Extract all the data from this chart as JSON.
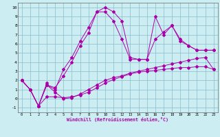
{
  "xlabel": "Windchill (Refroidissement éolien,°C)",
  "xlim": [
    -0.5,
    23.5
  ],
  "ylim": [
    -1.5,
    10.5
  ],
  "xticks": [
    0,
    1,
    2,
    3,
    4,
    5,
    6,
    7,
    8,
    9,
    10,
    11,
    12,
    13,
    14,
    15,
    16,
    17,
    18,
    19,
    20,
    21,
    22,
    23
  ],
  "yticks": [
    -1,
    0,
    1,
    2,
    3,
    4,
    5,
    6,
    7,
    8,
    9,
    10
  ],
  "background_color": "#cceef2",
  "grid_color": "#88bbcc",
  "line_color": "#aa00aa",
  "line1_x": [
    0,
    1,
    2,
    3,
    3,
    4,
    5,
    6,
    7,
    8,
    9,
    10,
    11,
    12,
    13,
    14,
    15,
    16,
    17,
    18,
    19,
    20,
    21,
    22,
    23
  ],
  "line1_y": [
    2.0,
    1.0,
    -0.8,
    1.7,
    1.5,
    1.0,
    3.2,
    4.5,
    6.3,
    7.8,
    9.5,
    9.5,
    8.5,
    6.5,
    4.3,
    4.3,
    4.3,
    9.0,
    7.0,
    8.0,
    6.3,
    5.8,
    5.3,
    5.3,
    5.3
  ],
  "line2_x": [
    0,
    1,
    2,
    3,
    4,
    5,
    6,
    7,
    8,
    9,
    10,
    11,
    12,
    13,
    14,
    15,
    16,
    17,
    18,
    19,
    20,
    21,
    22,
    23
  ],
  "line2_y": [
    2.0,
    1.0,
    -0.8,
    1.5,
    1.2,
    2.5,
    4.0,
    5.8,
    7.2,
    9.5,
    10.0,
    9.5,
    8.5,
    4.5,
    4.3,
    4.3,
    6.5,
    7.3,
    8.0,
    6.5,
    5.8,
    5.3,
    5.3,
    5.3
  ],
  "line3_x": [
    0,
    1,
    2,
    3,
    4,
    5,
    6,
    7,
    8,
    9,
    10,
    11,
    12,
    13,
    14,
    15,
    16,
    17,
    18,
    19,
    20,
    21,
    22,
    23
  ],
  "line3_y": [
    2.0,
    1.0,
    -0.8,
    0.2,
    0.2,
    0.1,
    0.2,
    0.4,
    0.7,
    1.2,
    1.7,
    2.1,
    2.4,
    2.7,
    2.9,
    3.0,
    3.1,
    3.2,
    3.3,
    3.4,
    3.4,
    3.5,
    3.5,
    3.2
  ],
  "line4_x": [
    0,
    1,
    2,
    3,
    4,
    5,
    6,
    7,
    8,
    9,
    10,
    11,
    12,
    13,
    14,
    15,
    16,
    17,
    18,
    19,
    20,
    21,
    22,
    23
  ],
  "line4_y": [
    2.0,
    1.0,
    -0.8,
    1.5,
    0.7,
    0.0,
    0.1,
    0.5,
    1.0,
    1.5,
    2.0,
    2.3,
    2.5,
    2.8,
    3.0,
    3.2,
    3.4,
    3.6,
    3.8,
    4.0,
    4.2,
    4.4,
    4.5,
    3.2
  ]
}
